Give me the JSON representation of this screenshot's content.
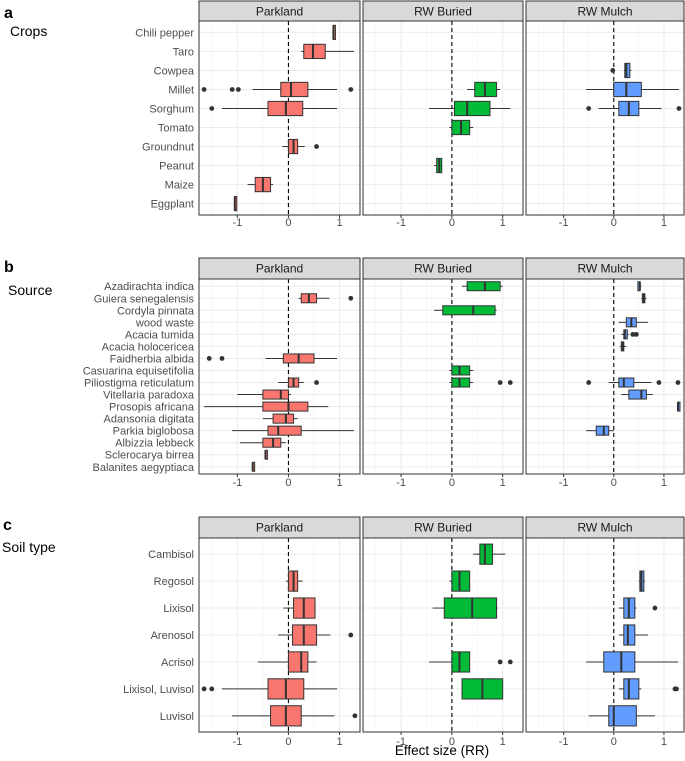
{
  "figure": {
    "xlabel": "Effect size (RR)",
    "treatments": [
      "Parkland",
      "RW Buried",
      "RW Mulch"
    ],
    "x_ticks": [
      -1,
      0,
      1
    ],
    "xlim": [
      -1.75,
      1.4
    ]
  },
  "colors": {
    "Parkland": "#F8766D",
    "RW Buried": "#00BA38",
    "RW Mulch": "#619CFF",
    "strip": "#d9d9d9",
    "panel_border": "#333333",
    "grid": "#ebebeb",
    "text": "#4d4d4d"
  },
  "chart_data": [
    {
      "type": "boxplot",
      "tag": "a",
      "title": "Crops",
      "xlabel": "",
      "categories": [
        "Chili pepper",
        "Taro",
        "Cowpea",
        "Millet",
        "Sorghum",
        "Tomato",
        "Groundnut",
        "Peanut",
        "Maize",
        "Eggplant"
      ],
      "series": [
        {
          "name": "Parkland",
          "boxes": [
            {
              "cat": "Chili pepper",
              "stats": [
                0.88,
                0.88,
                0.88,
                0.88,
                0.88
              ],
              "outliers": []
            },
            {
              "cat": "Taro",
              "stats": [
                0.25,
                0.3,
                0.48,
                0.72,
                1.28
              ],
              "outliers": []
            },
            {
              "cat": "Millet",
              "stats": [
                -0.7,
                -0.15,
                0.05,
                0.38,
                0.95
              ],
              "outliers": [
                -1.65,
                -1.1,
                -0.98,
                1.22
              ]
            },
            {
              "cat": "Sorghum",
              "stats": [
                -1.3,
                -0.4,
                -0.05,
                0.28,
                0.95
              ],
              "outliers": [
                -1.5
              ]
            },
            {
              "cat": "Groundnut",
              "stats": [
                -0.12,
                0.0,
                0.1,
                0.18,
                0.32
              ],
              "outliers": [
                0.55
              ]
            },
            {
              "cat": "Maize",
              "stats": [
                -0.8,
                -0.65,
                -0.5,
                -0.35,
                -0.3
              ],
              "outliers": []
            },
            {
              "cat": "Eggplant",
              "stats": [
                -1.05,
                -1.05,
                -1.05,
                -1.05,
                -1.05
              ],
              "outliers": []
            }
          ]
        },
        {
          "name": "RW Buried",
          "boxes": [
            {
              "cat": "Millet",
              "stats": [
                0.3,
                0.45,
                0.65,
                0.88,
                0.95
              ],
              "outliers": []
            },
            {
              "cat": "Sorghum",
              "stats": [
                -0.45,
                0.05,
                0.3,
                0.75,
                1.15
              ],
              "outliers": []
            },
            {
              "cat": "Tomato",
              "stats": [
                -0.05,
                0.0,
                0.18,
                0.35,
                0.42
              ],
              "outliers": []
            },
            {
              "cat": "Peanut",
              "stats": [
                -0.35,
                -0.3,
                -0.25,
                -0.2,
                -0.2
              ],
              "outliers": []
            }
          ]
        },
        {
          "name": "RW Mulch",
          "boxes": [
            {
              "cat": "Cowpea",
              "stats": [
                0.2,
                0.22,
                0.25,
                0.32,
                0.35
              ],
              "outliers": [
                -0.02
              ]
            },
            {
              "cat": "Millet",
              "stats": [
                -0.55,
                0.0,
                0.25,
                0.55,
                1.3
              ],
              "outliers": []
            },
            {
              "cat": "Sorghum",
              "stats": [
                -0.3,
                0.1,
                0.3,
                0.5,
                0.95
              ],
              "outliers": [
                -0.5,
                1.3
              ]
            }
          ]
        }
      ]
    },
    {
      "type": "boxplot",
      "tag": "b",
      "title": "Source",
      "xlabel": "",
      "categories": [
        "Azadirachta indica",
        "Guiera senegalensis",
        "Cordyla pinnata",
        "wood waste",
        "Acacia tumida",
        "Acacia holocericea",
        "Faidherbia albida",
        "Casuarina equisetifolia",
        "Piliostigma reticulatum",
        "Vitellaria paradoxa",
        "Prosopis africana",
        "Adansonia digitata",
        "Parkia biglobosa",
        "Albizzia lebbeck",
        "Sclerocarya birrea",
        "Balanites aegyptiaca"
      ],
      "series": [
        {
          "name": "Parkland",
          "boxes": [
            {
              "cat": "Guiera senegalensis",
              "stats": [
                0.2,
                0.25,
                0.4,
                0.55,
                0.8
              ],
              "outliers": [
                1.22
              ]
            },
            {
              "cat": "Faidherbia albida",
              "stats": [
                -0.45,
                -0.1,
                0.2,
                0.5,
                0.95
              ],
              "outliers": [
                -1.55,
                -1.3
              ]
            },
            {
              "cat": "Piliostigma reticulatum",
              "stats": [
                -0.2,
                0.0,
                0.1,
                0.2,
                0.3
              ],
              "outliers": [
                0.55
              ]
            },
            {
              "cat": "Vitellaria paradoxa",
              "stats": [
                -1.0,
                -0.5,
                -0.15,
                0.0,
                0.05
              ],
              "outliers": []
            },
            {
              "cat": "Prosopis africana",
              "stats": [
                -1.65,
                -0.5,
                0.0,
                0.38,
                0.78
              ],
              "outliers": []
            },
            {
              "cat": "Adansonia digitata",
              "stats": [
                -0.5,
                -0.3,
                -0.05,
                0.1,
                0.18
              ],
              "outliers": []
            },
            {
              "cat": "Parkia biglobosa",
              "stats": [
                -1.1,
                -0.4,
                -0.2,
                0.25,
                1.28
              ],
              "outliers": []
            },
            {
              "cat": "Albizzia lebbeck",
              "stats": [
                -0.95,
                -0.5,
                -0.3,
                -0.15,
                -0.05
              ],
              "outliers": []
            },
            {
              "cat": "Sclerocarya birrea",
              "stats": [
                -0.45,
                -0.45,
                -0.45,
                -0.45,
                -0.45
              ],
              "outliers": []
            },
            {
              "cat": "Balanites aegyptiaca",
              "stats": [
                -0.7,
                -0.7,
                -0.7,
                -0.7,
                -0.7
              ],
              "outliers": []
            }
          ]
        },
        {
          "name": "RW Buried",
          "boxes": [
            {
              "cat": "Azadirachta indica",
              "stats": [
                0.2,
                0.3,
                0.65,
                0.95,
                1.0
              ],
              "outliers": []
            },
            {
              "cat": "Cordyla pinnata",
              "stats": [
                -0.35,
                -0.18,
                0.42,
                0.85,
                0.88
              ],
              "outliers": []
            },
            {
              "cat": "Casuarina equisetifolia",
              "stats": [
                -0.05,
                0.0,
                0.15,
                0.35,
                0.42
              ],
              "outliers": []
            },
            {
              "cat": "Piliostigma reticulatum",
              "stats": [
                -0.05,
                0.0,
                0.15,
                0.35,
                0.42
              ],
              "outliers": [
                0.95,
                1.15
              ]
            }
          ]
        },
        {
          "name": "RW Mulch",
          "boxes": [
            {
              "cat": "Azadirachta indica",
              "stats": [
                0.48,
                0.48,
                0.52,
                0.52,
                0.55
              ],
              "outliers": []
            },
            {
              "cat": "Guiera senegalensis",
              "stats": [
                0.55,
                0.57,
                0.6,
                0.62,
                0.65
              ],
              "outliers": []
            },
            {
              "cat": "wood waste",
              "stats": [
                0.1,
                0.25,
                0.35,
                0.45,
                0.68
              ],
              "outliers": []
            },
            {
              "cat": "Acacia tumida",
              "stats": [
                0.15,
                0.2,
                0.22,
                0.27,
                0.3
              ],
              "outliers": [
                0.38,
                0.45
              ]
            },
            {
              "cat": "Acacia holocericea",
              "stats": [
                0.12,
                0.15,
                0.18,
                0.2,
                0.25
              ],
              "outliers": []
            },
            {
              "cat": "Piliostigma reticulatum",
              "stats": [
                -0.1,
                0.1,
                0.2,
                0.4,
                0.75
              ],
              "outliers": [
                -0.5,
                0.9,
                1.28
              ]
            },
            {
              "cat": "Vitellaria paradoxa",
              "stats": [
                0.15,
                0.3,
                0.55,
                0.65,
                0.78
              ],
              "outliers": []
            },
            {
              "cat": "Prosopis africana",
              "stats": [
                1.28,
                1.28,
                1.28,
                1.28,
                1.28
              ],
              "outliers": []
            },
            {
              "cat": "Parkia biglobosa",
              "stats": [
                -0.55,
                -0.35,
                -0.2,
                -0.1,
                0.0
              ],
              "outliers": []
            }
          ]
        }
      ]
    },
    {
      "type": "boxplot",
      "tag": "c",
      "title": "Soil type",
      "xlabel": "Effect size (RR)",
      "categories": [
        "Cambisol",
        "Regosol",
        "Lixisol",
        "Arenosol",
        "Acrisol",
        "Lixisol, Luvisol",
        "Luvisol"
      ],
      "series": [
        {
          "name": "Parkland",
          "boxes": [
            {
              "cat": "Regosol",
              "stats": [
                -0.05,
                0.0,
                0.1,
                0.18,
                0.28
              ],
              "outliers": []
            },
            {
              "cat": "Lixisol",
              "stats": [
                -0.1,
                0.1,
                0.3,
                0.52,
                0.52
              ],
              "outliers": []
            },
            {
              "cat": "Arenosol",
              "stats": [
                -0.2,
                0.08,
                0.3,
                0.55,
                0.82
              ],
              "outliers": [
                1.22
              ]
            },
            {
              "cat": "Acrisol",
              "stats": [
                -0.6,
                0.0,
                0.25,
                0.38,
                0.55
              ],
              "outliers": []
            },
            {
              "cat": "Lixisol, Luvisol",
              "stats": [
                -1.3,
                -0.4,
                -0.05,
                0.3,
                0.95
              ],
              "outliers": [
                -1.65,
                -1.5
              ]
            },
            {
              "cat": "Luvisol",
              "stats": [
                -1.1,
                -0.35,
                -0.05,
                0.25,
                0.9
              ],
              "outliers": [
                1.3
              ]
            }
          ]
        },
        {
          "name": "RW Buried",
          "boxes": [
            {
              "cat": "Cambisol",
              "stats": [
                0.42,
                0.55,
                0.65,
                0.8,
                1.05
              ],
              "outliers": []
            },
            {
              "cat": "Regosol",
              "stats": [
                -0.05,
                0.0,
                0.15,
                0.35,
                0.35
              ],
              "outliers": []
            },
            {
              "cat": "Lixisol",
              "stats": [
                -0.38,
                -0.15,
                0.4,
                0.88,
                0.9
              ],
              "outliers": []
            },
            {
              "cat": "Acrisol",
              "stats": [
                -0.45,
                0.0,
                0.15,
                0.35,
                0.35
              ],
              "outliers": [
                0.95,
                1.15
              ]
            },
            {
              "cat": "Lixisol, Luvisol",
              "stats": [
                0.2,
                0.2,
                0.6,
                1.0,
                1.0
              ],
              "outliers": []
            }
          ]
        },
        {
          "name": "RW Mulch",
          "boxes": [
            {
              "cat": "Regosol",
              "stats": [
                0.5,
                0.52,
                0.55,
                0.6,
                0.62
              ],
              "outliers": []
            },
            {
              "cat": "Lixisol",
              "stats": [
                0.1,
                0.2,
                0.3,
                0.42,
                0.45
              ],
              "outliers": [
                0.82
              ]
            },
            {
              "cat": "Arenosol",
              "stats": [
                0.1,
                0.2,
                0.28,
                0.42,
                0.68
              ],
              "outliers": []
            },
            {
              "cat": "Acrisol",
              "stats": [
                -0.55,
                -0.2,
                0.15,
                0.42,
                1.28
              ],
              "outliers": []
            },
            {
              "cat": "Lixisol, Luvisol",
              "stats": [
                0.1,
                0.2,
                0.3,
                0.5,
                0.55
              ],
              "outliers": [
                1.22,
                1.25
              ]
            },
            {
              "cat": "Luvisol",
              "stats": [
                -0.5,
                -0.1,
                0.0,
                0.45,
                0.82
              ],
              "outliers": []
            }
          ]
        }
      ]
    }
  ]
}
